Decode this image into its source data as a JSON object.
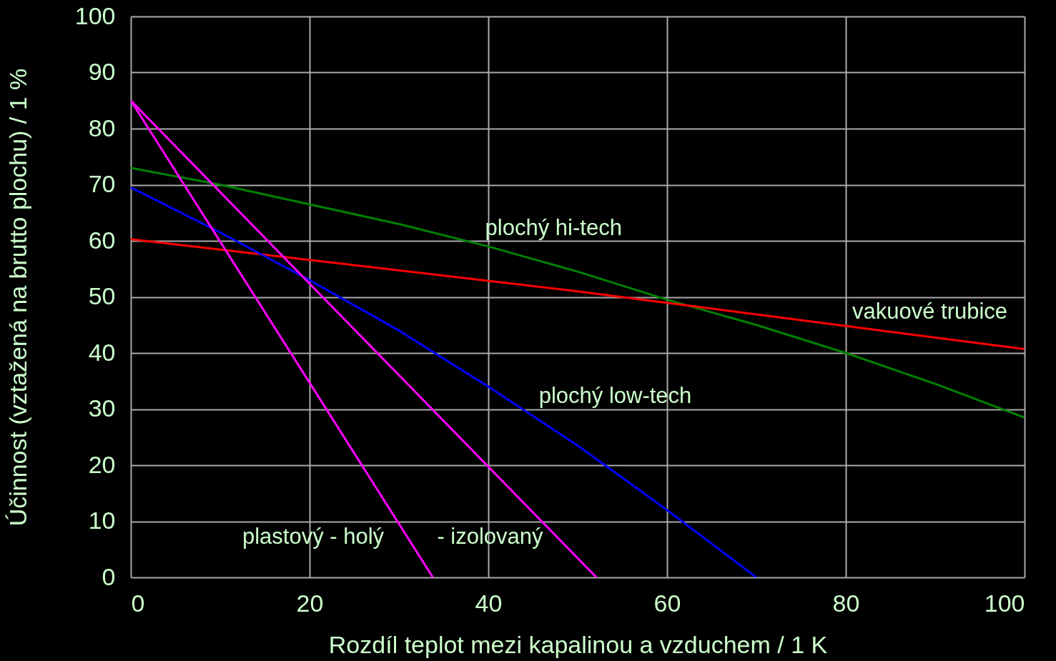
{
  "chart_data": {
    "type": "line",
    "xlabel": "Rozdíl teplot mezi kapalinou a vzduchem / 1 K",
    "ylabel": "Účinnost (vztažená na brutto plochu) / 1 %",
    "series": [
      {
        "name": "plochý hi-tech",
        "color": "#008000",
        "x": [
          0,
          10,
          20,
          30,
          40,
          50,
          60,
          70,
          80,
          90,
          100
        ],
        "values": [
          73,
          70,
          66.5,
          63,
          59,
          54.5,
          49.5,
          45,
          40,
          34.5,
          28.5
        ]
      },
      {
        "name": "vakuové trubice",
        "color": "#ff0000",
        "x": [
          0,
          50,
          100
        ],
        "values": [
          60.3,
          51,
          40.7
        ]
      },
      {
        "name": "plochý low-tech",
        "color": "#0000ff",
        "x": [
          0,
          10,
          20,
          30,
          40,
          50,
          60,
          70
        ],
        "values": [
          69.5,
          61.5,
          53,
          44,
          34,
          23.5,
          12,
          0
        ]
      },
      {
        "name": "plastový - holý",
        "color": "#ff00ff",
        "x": [
          0,
          33.8
        ],
        "values": [
          85,
          0
        ]
      },
      {
        "name": "- izolovaný",
        "color": "#ff00ff",
        "x": [
          0,
          52.1
        ],
        "values": [
          85,
          0
        ]
      }
    ],
    "xlim": [
      0,
      100
    ],
    "xticks": [
      0,
      20,
      40,
      60,
      80,
      100
    ],
    "ylim": [
      0,
      100
    ],
    "yticks": [
      0,
      10,
      20,
      30,
      40,
      50,
      60,
      70,
      80,
      90,
      100
    ],
    "grid": true,
    "legend": false
  }
}
